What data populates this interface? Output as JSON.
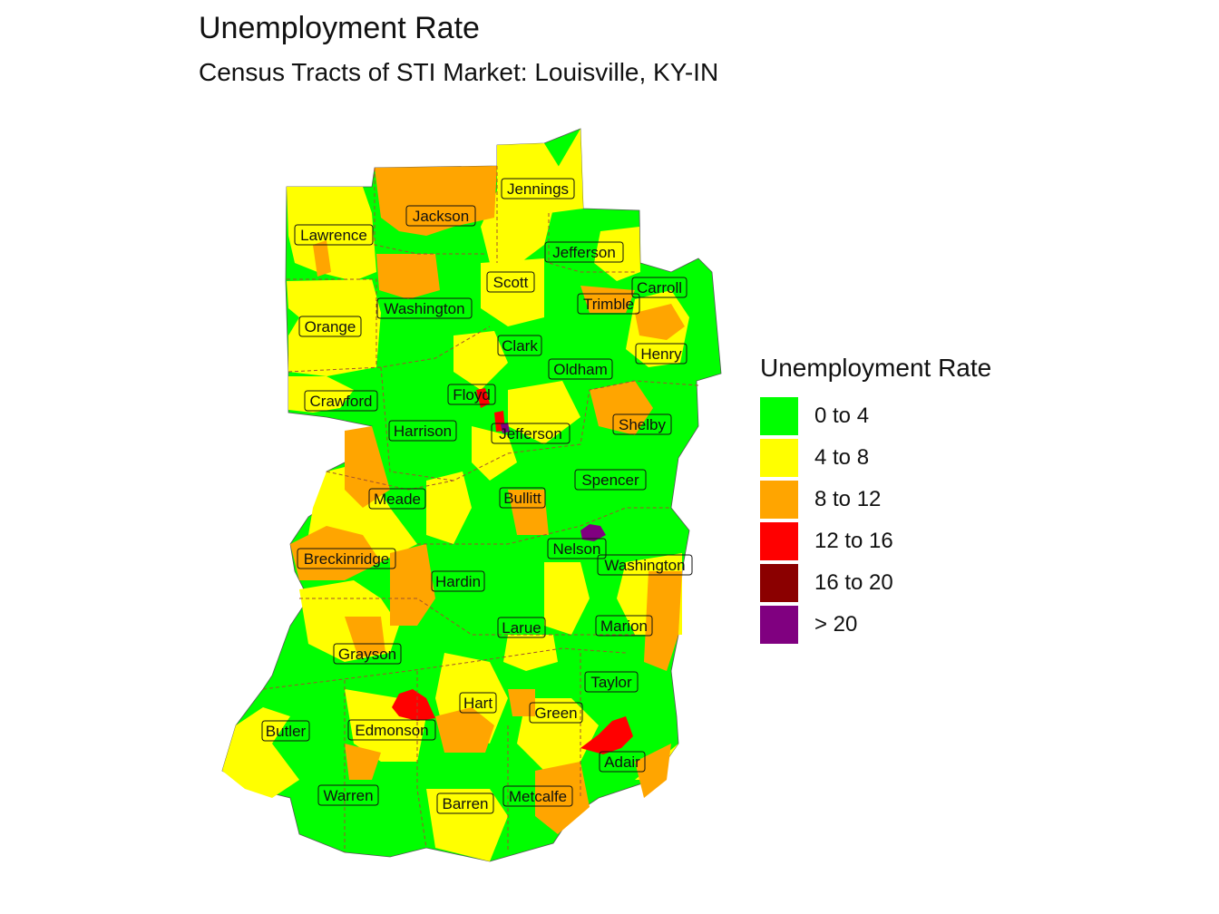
{
  "title": "Unemployment Rate",
  "subtitle": "Census Tracts of STI Market: Louisville, KY-IN",
  "legend": {
    "title": "Unemployment Rate",
    "items": [
      {
        "label": "0 to 4",
        "color": "#00FF00"
      },
      {
        "label": "4 to 8",
        "color": "#FFFF00"
      },
      {
        "label": "8 to 12",
        "color": "#FFA500"
      },
      {
        "label": "12 to 16",
        "color": "#FF0000"
      },
      {
        "label": "16 to 20",
        "color": "#8B0000"
      },
      {
        "label": "> 20",
        "color": "#800080"
      }
    ]
  },
  "counties": [
    "Jennings",
    "Jackson",
    "Lawrence",
    "Jefferson",
    "Scott",
    "Carroll",
    "Trimble",
    "Washington",
    "Orange",
    "Clark",
    "Henry",
    "Oldham",
    "Crawford",
    "Floyd",
    "Shelby",
    "Harrison",
    "Jefferson",
    "Spencer",
    "Meade",
    "Bullitt",
    "Nelson",
    "Breckinridge",
    "Washington",
    "Hardin",
    "Marion",
    "Larue",
    "Grayson",
    "Taylor",
    "Hart",
    "Green",
    "Butler",
    "Edmonson",
    "Adair",
    "Warren",
    "Metcalfe",
    "Barren"
  ]
}
